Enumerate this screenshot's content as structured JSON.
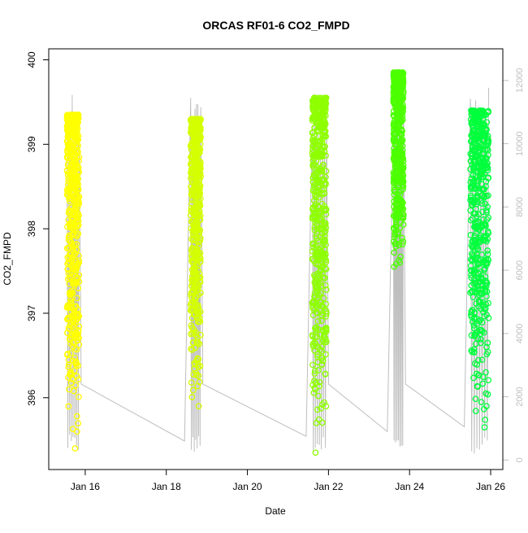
{
  "chart_data": {
    "type": "scatter",
    "title": "ORCAS RF01-6 CO2_FMPD",
    "xlabel": "Date",
    "ylabel": "CO2_FMPD",
    "x_ticks": [
      "Jan 16",
      "Jan 18",
      "Jan 20",
      "Jan 22",
      "Jan 24",
      "Jan 26"
    ],
    "y_ticks": [
      "396",
      "397",
      "398",
      "399",
      "400"
    ],
    "y2_ticks": [
      "0",
      "2000",
      "4000",
      "6000",
      "8000",
      "10000",
      "12000"
    ],
    "xlim_days": [
      15.1,
      26.3
    ],
    "ylim": [
      395.15,
      400.13
    ],
    "y2lim": [
      -300,
      13000
    ],
    "grid": false,
    "legend": "none",
    "secondary_series_color": "#bebebe",
    "series": [
      {
        "color": "#ffff00",
        "x": [
          15.55,
          15.85
        ],
        "y_range": [
          395.4,
          399.35
        ],
        "label_points": [
          [
            15.6,
            396.1
          ],
          [
            15.65,
            396.3
          ],
          [
            15.7,
            396.6
          ],
          [
            15.6,
            397.1
          ],
          [
            15.8,
            397.4
          ],
          [
            15.75,
            395.4
          ]
        ]
      },
      {
        "color": "#d4ff00",
        "x": [
          18.6,
          18.85
        ],
        "y_range": [
          395.9,
          399.3
        ],
        "label_points": [
          [
            18.6,
            397.1
          ],
          [
            18.65,
            397.05
          ],
          [
            18.8,
            395.9
          ]
        ]
      },
      {
        "color": "#8fff00",
        "x": [
          21.6,
          21.95
        ],
        "y_range": [
          395.35,
          399.55
        ],
        "label_points": [
          [
            21.65,
            397.2
          ],
          [
            21.7,
            396.8
          ],
          [
            21.65,
            396.2
          ],
          [
            21.7,
            395.7
          ],
          [
            21.68,
            395.35
          ]
        ]
      },
      {
        "color": "#4cff00",
        "x": [
          23.6,
          23.85
        ],
        "y_range": [
          397.5,
          399.85
        ],
        "label_points": [
          [
            23.62,
            397.55
          ],
          [
            23.8,
            399.8
          ]
        ]
      },
      {
        "color": "#00ff3c",
        "x": [
          25.5,
          25.95
        ],
        "y_range": [
          395.6,
          399.4
        ],
        "label_points": [
          [
            25.9,
            396.6
          ],
          [
            25.88,
            396.3
          ],
          [
            25.9,
            395.9
          ],
          [
            25.85,
            395.65
          ],
          [
            25.9,
            397.2
          ]
        ]
      }
    ]
  }
}
